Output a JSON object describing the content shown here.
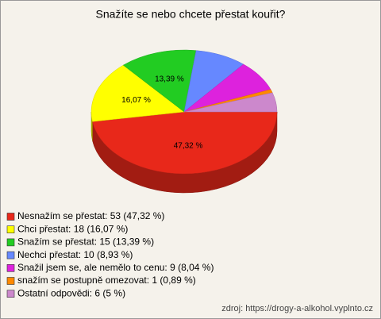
{
  "chart_data": {
    "type": "pie",
    "title": "Snažíte se nebo chcete přestat kouřit?",
    "categories": [
      "Nesnažím se přestat: 53 (47,32 %)",
      "Chci přestat: 18 (16,07 %)",
      "Snažím se přestat: 15 (13,39 %)",
      "Nechci přestat: 10 (8,93 %)",
      "Snažil jsem se, ale nemělo to cenu: 9 (8,04 %)",
      "snažím se postupně omezovat: 1 (0,89 %)",
      "Ostatní odpovědi: 6 (5 %)"
    ],
    "values": [
      47.32,
      16.07,
      13.39,
      8.93,
      8.04,
      0.89,
      5
    ],
    "value_labels": [
      "47,32 %",
      "16,07 %",
      "13,39 %",
      null,
      null,
      null,
      null
    ],
    "colors": [
      "#e8281a",
      "#ffff00",
      "#22cc22",
      "#6688ff",
      "#dd22dd",
      "#ff8800",
      "#cc88cc"
    ],
    "source": "zdroj: https://drogy-a-alkohol.vyplnto.cz"
  }
}
